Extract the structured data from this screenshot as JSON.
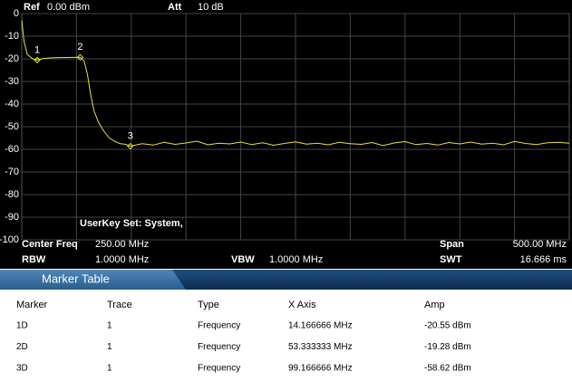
{
  "header": {
    "ref_label": "Ref",
    "ref_value": "0.00 dBm",
    "att_label": "Att",
    "att_value": "10 dB"
  },
  "chart_data": {
    "type": "line",
    "color": "#e8e040",
    "grid": true,
    "ylim": [
      -100,
      0
    ],
    "yticks": [
      0,
      -10,
      -20,
      -30,
      -40,
      -50,
      -60,
      -70,
      -80,
      -90,
      -100
    ],
    "xlim": [
      0,
      500
    ],
    "x": [
      0,
      2,
      5,
      10,
      14.166666,
      20,
      30,
      40,
      53.333333,
      57,
      60,
      63,
      66,
      70,
      75,
      80,
      85,
      90,
      95,
      99.166666,
      110,
      120,
      130,
      140,
      150,
      160,
      170,
      180,
      190,
      200,
      210,
      220,
      230,
      240,
      250,
      260,
      270,
      280,
      290,
      300,
      310,
      320,
      330,
      340,
      350,
      360,
      370,
      380,
      390,
      400,
      410,
      420,
      430,
      440,
      450,
      460,
      470,
      480,
      490,
      500
    ],
    "values": [
      -3,
      -12,
      -18,
      -20,
      -20.55,
      -19.8,
      -19.5,
      -19.4,
      -19.28,
      -21,
      -27,
      -36,
      -43,
      -48,
      -52,
      -55,
      -56.5,
      -57.5,
      -57.8,
      -58.62,
      -57.5,
      -58.1,
      -56.9,
      -57.8,
      -57.2,
      -56.4,
      -58.0,
      -57.3,
      -57.6,
      -56.8,
      -57.9,
      -57.1,
      -58.2,
      -57.4,
      -56.7,
      -57.7,
      -57.3,
      -58.0,
      -56.9,
      -57.5,
      -57.8,
      -57.0,
      -58.3,
      -57.2,
      -56.6,
      -57.9,
      -57.4,
      -58.1,
      -57.0,
      -57.6,
      -56.8,
      -57.7,
      -57.3,
      -58.0,
      -56.5,
      -57.4,
      -57.9,
      -57.1,
      -56.9,
      -57.3
    ],
    "markers": [
      {
        "label": "1",
        "x": 14.166666,
        "y": -20.55
      },
      {
        "label": "2",
        "x": 53.333333,
        "y": -19.28
      },
      {
        "label": "3",
        "x": 99.166666,
        "y": -58.62
      }
    ],
    "annotation": "UserKey Set:  System,"
  },
  "info": {
    "center_label": "Center Freq",
    "center_value": "250.00 MHz",
    "span_label": "Span",
    "span_value": "500.00 MHz",
    "rbw_label": "RBW",
    "rbw_value": "1.0000 MHz",
    "vbw_label": "VBW",
    "vbw_value": "1.0000 MHz",
    "swt_label": "SWT",
    "swt_value": "16.666 ms"
  },
  "marker_table": {
    "title": "Marker Table",
    "columns": [
      "Marker",
      "Trace",
      "Type",
      "X Axis",
      "Amp"
    ],
    "rows": [
      [
        "1D",
        "1",
        "Frequency",
        "14.166666 MHz",
        "-20.55 dBm"
      ],
      [
        "2D",
        "1",
        "Frequency",
        "53.333333 MHz",
        "-19.28 dBm"
      ],
      [
        "3D",
        "1",
        "Frequency",
        "99.166666 MHz",
        "-58.62 dBm"
      ]
    ]
  }
}
